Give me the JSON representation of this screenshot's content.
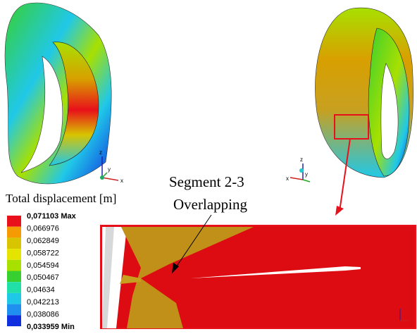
{
  "legend": {
    "title": "Total displacement [m]",
    "labels": [
      "0,071103 Max",
      "0,066976",
      "0,062849",
      "0,058722",
      "0,054594",
      "0,050467",
      "0,04634",
      "0,042213",
      "0,038086",
      "0,033959 Min"
    ],
    "colors": [
      "#e8101a",
      "#f59a00",
      "#d8c400",
      "#e4e400",
      "#a8e000",
      "#38d030",
      "#20e0a8",
      "#20c8e8",
      "#2090f0",
      "#1030e0"
    ]
  },
  "annotation": {
    "line1": "Segment 2-3",
    "line2": "Overlapping"
  },
  "axis_labels": {
    "z": "z",
    "y": "y",
    "x": "x"
  }
}
